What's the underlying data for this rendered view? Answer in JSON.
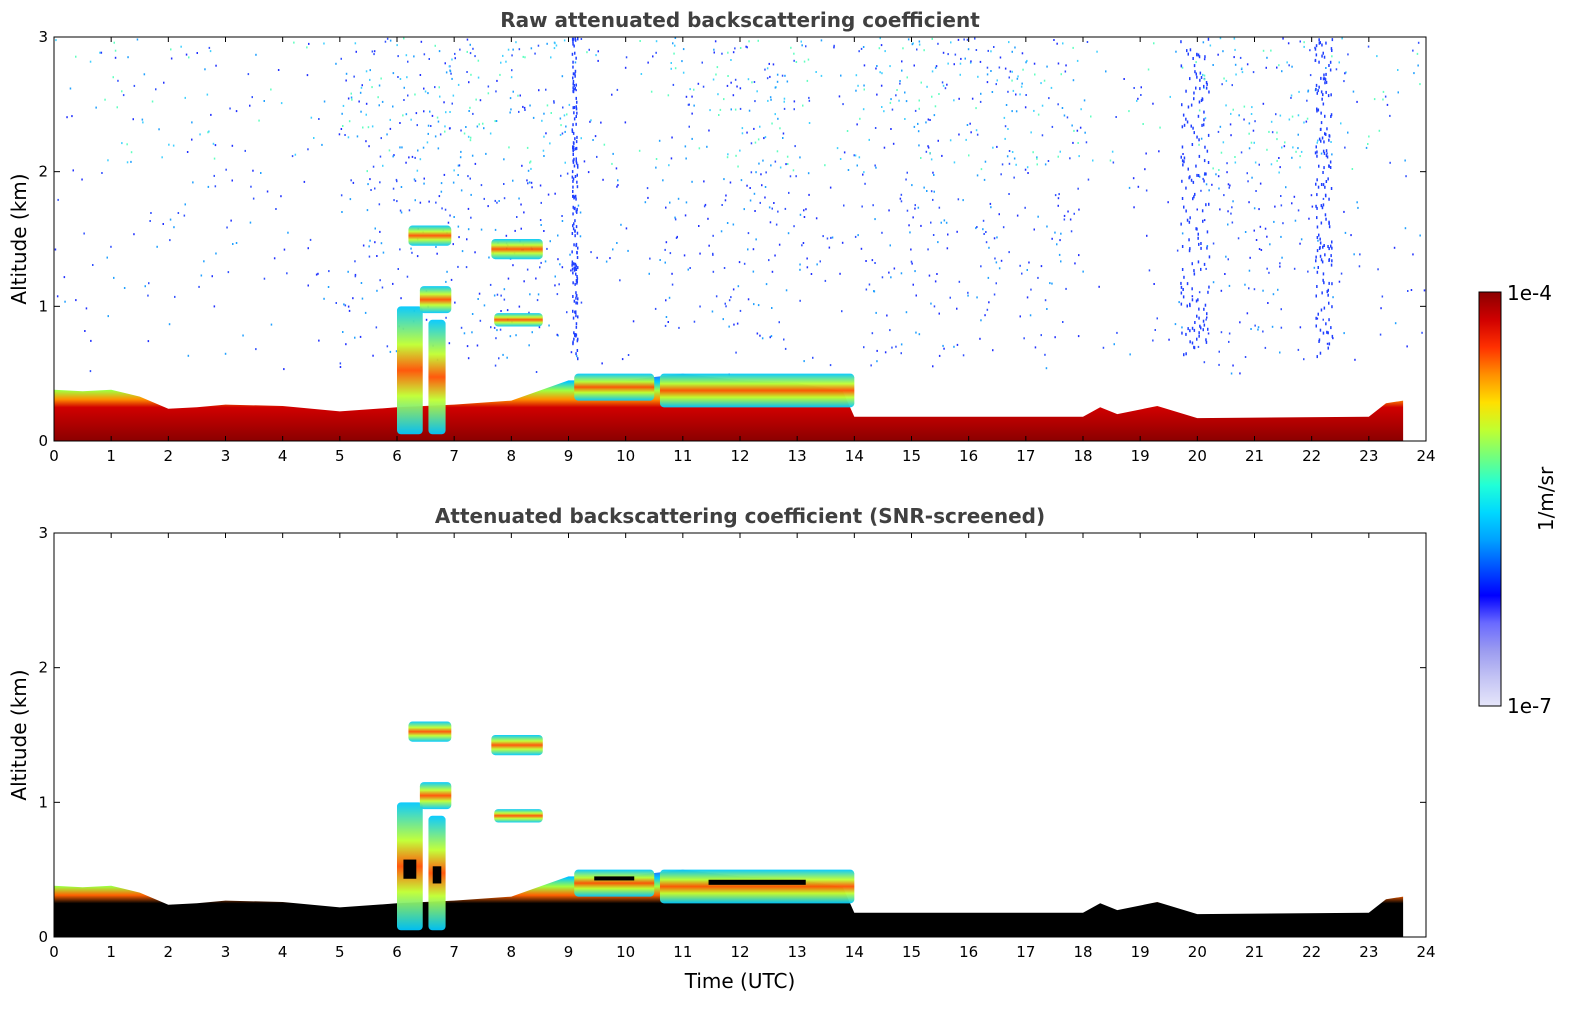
{
  "chart_data": [
    {
      "type": "heatmap",
      "title": "Raw attenuated backscattering coefficient",
      "ylabel": "Altitude (km)",
      "xlabel": "",
      "xlim": [
        0,
        24
      ],
      "ylim": [
        0,
        3
      ],
      "xticks": [
        "0",
        "1",
        "2",
        "3",
        "4",
        "5",
        "6",
        "7",
        "8",
        "9",
        "10",
        "11",
        "12",
        "13",
        "14",
        "15",
        "16",
        "17",
        "18",
        "19",
        "20",
        "21",
        "22",
        "23",
        "24"
      ],
      "yticks": [
        "0",
        "1",
        "2",
        "3"
      ],
      "colormap": "jet",
      "background_color": "#ffffff",
      "boundary_layer_top_km": [
        [
          0,
          0.38
        ],
        [
          0.5,
          0.37
        ],
        [
          1,
          0.38
        ],
        [
          1.5,
          0.33
        ],
        [
          2,
          0.24
        ],
        [
          2.5,
          0.25
        ],
        [
          3,
          0.27
        ],
        [
          4,
          0.26
        ],
        [
          5,
          0.22
        ],
        [
          6,
          0.25
        ],
        [
          7,
          0.27
        ],
        [
          8,
          0.3
        ],
        [
          9,
          0.45
        ],
        [
          10,
          0.45
        ],
        [
          11,
          0.5
        ],
        [
          12,
          0.45
        ],
        [
          13,
          0.43
        ],
        [
          13.8,
          0.37
        ],
        [
          14,
          0.18
        ],
        [
          18,
          0.18
        ],
        [
          18.3,
          0.25
        ],
        [
          18.6,
          0.2
        ],
        [
          19.3,
          0.26
        ],
        [
          20,
          0.17
        ],
        [
          23,
          0.18
        ],
        [
          23.3,
          0.28
        ],
        [
          23.6,
          0.3
        ]
      ],
      "cloud_patches": [
        {
          "t": [
            6.0,
            6.45
          ],
          "z": [
            0.05,
            1.0
          ]
        },
        {
          "t": [
            6.55,
            6.85
          ],
          "z": [
            0.05,
            0.9
          ]
        },
        {
          "t": [
            6.2,
            6.95
          ],
          "z": [
            1.45,
            1.6
          ]
        },
        {
          "t": [
            6.4,
            6.95
          ],
          "z": [
            0.95,
            1.15
          ]
        },
        {
          "t": [
            7.65,
            8.55
          ],
          "z": [
            1.35,
            1.5
          ]
        },
        {
          "t": [
            7.7,
            8.55
          ],
          "z": [
            0.85,
            0.95
          ]
        },
        {
          "t": [
            9.1,
            10.5
          ],
          "z": [
            0.3,
            0.5
          ]
        },
        {
          "t": [
            10.6,
            14.0
          ],
          "z": [
            0.25,
            0.5
          ]
        }
      ],
      "precipitation_columns_hours": [
        [
          19.7,
          20.2
        ],
        [
          22.05,
          22.35
        ],
        [
          9.05,
          9.15
        ]
      ]
    },
    {
      "type": "heatmap",
      "title": "Attenuated backscattering coefficient (SNR-screened)",
      "ylabel": "Altitude (km)",
      "xlabel": "Time (UTC)",
      "xlim": [
        0,
        24
      ],
      "ylim": [
        0,
        3
      ],
      "xticks": [
        "0",
        "1",
        "2",
        "3",
        "4",
        "5",
        "6",
        "7",
        "8",
        "9",
        "10",
        "11",
        "12",
        "13",
        "14",
        "15",
        "16",
        "17",
        "18",
        "19",
        "20",
        "21",
        "22",
        "23",
        "24"
      ],
      "yticks": [
        "0",
        "1",
        "2",
        "3"
      ],
      "colormap": "jet",
      "masked_color": "#000000"
    }
  ],
  "colorbar": {
    "label": "1/m/sr",
    "max_label": "1e-4",
    "min_label": "1e-7",
    "colors": [
      "#e6e6fa",
      "#c4c4f4",
      "#9c9cf0",
      "#6a6aff",
      "#0000ff",
      "#0050ff",
      "#00a0ff",
      "#00d8ff",
      "#20ffd8",
      "#70ff80",
      "#c0ff30",
      "#ffe000",
      "#ff9000",
      "#ff3000",
      "#d00000",
      "#8b0000"
    ]
  }
}
